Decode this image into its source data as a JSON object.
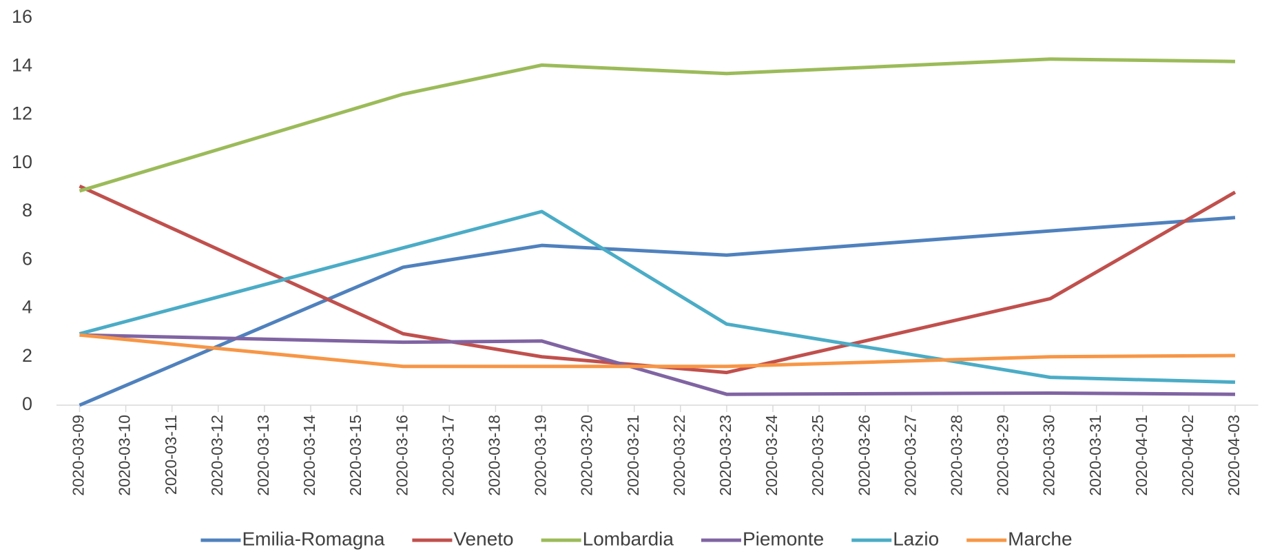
{
  "chart_data": {
    "type": "line",
    "x": [
      "2020-03-09",
      "2020-03-16",
      "2020-03-19",
      "2020-03-23",
      "2020-03-30",
      "2020-04-03"
    ],
    "series": [
      {
        "name": "Emilia-Romagna",
        "color": "#4f81bd",
        "values": [
          0,
          5.7,
          6.6,
          6.2,
          7.2,
          7.75
        ]
      },
      {
        "name": "Veneto",
        "color": "#c0504d",
        "values": [
          9.05,
          2.95,
          2.0,
          1.35,
          4.4,
          8.8
        ]
      },
      {
        "name": "Lombardia",
        "color": "#9bbb59",
        "values": [
          8.85,
          12.85,
          14.05,
          13.7,
          14.3,
          14.2
        ]
      },
      {
        "name": "Piemonte",
        "color": "#8064a2",
        "values": [
          2.9,
          2.6,
          2.65,
          0.45,
          0.5,
          0.45
        ]
      },
      {
        "name": "Lazio",
        "color": "#4bacc6",
        "values": [
          2.95,
          6.5,
          8.0,
          3.35,
          1.15,
          0.95
        ]
      },
      {
        "name": "Marche",
        "color": "#f79646",
        "values": [
          2.9,
          1.6,
          1.6,
          1.6,
          2.0,
          2.05
        ]
      }
    ],
    "xticks": [
      "2020-03-09",
      "2020-03-10",
      "2020-03-11",
      "2020-03-12",
      "2020-03-13",
      "2020-03-14",
      "2020-03-15",
      "2020-03-16",
      "2020-03-17",
      "2020-03-18",
      "2020-03-19",
      "2020-03-20",
      "2020-03-21",
      "2020-03-22",
      "2020-03-23",
      "2020-03-24",
      "2020-03-25",
      "2020-03-26",
      "2020-03-27",
      "2020-03-28",
      "2020-03-29",
      "2020-03-30",
      "2020-03-31",
      "2020-04-01",
      "2020-04-02",
      "2020-04-03"
    ],
    "ylim": [
      0,
      16
    ],
    "yticks": [
      0,
      2,
      4,
      6,
      8,
      10,
      12,
      14,
      16
    ],
    "legend": "bottom"
  }
}
